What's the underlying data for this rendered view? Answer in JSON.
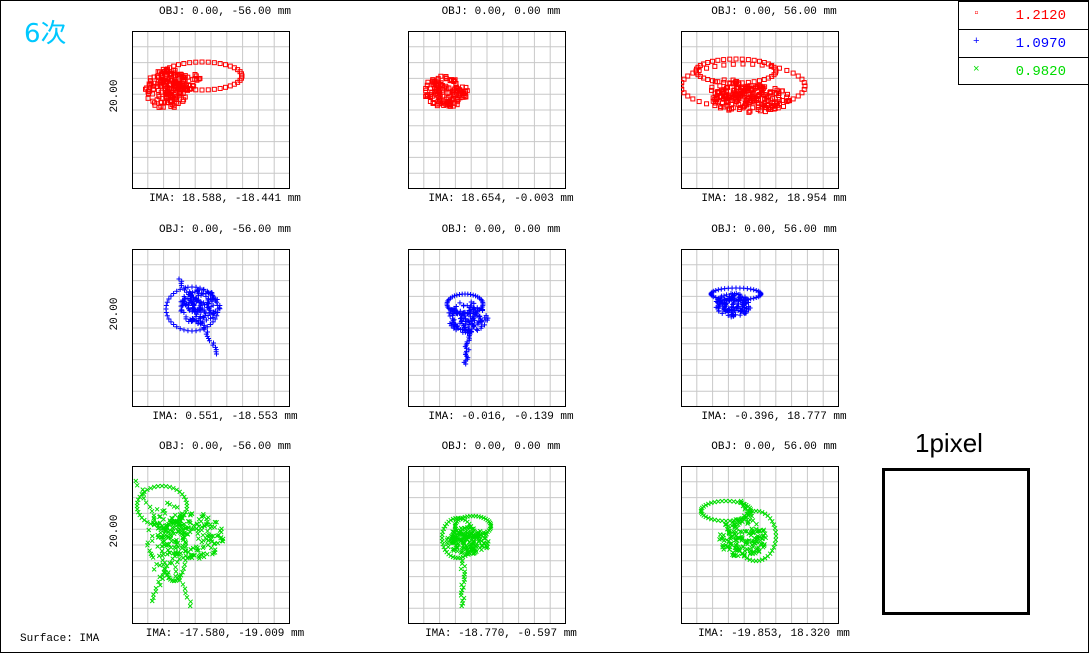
{
  "header": {
    "title": "6次"
  },
  "footer": {
    "surface_label": "Surface: IMA"
  },
  "legend": [
    {
      "value": "1.2120",
      "color": "#ff0000",
      "symbol": "square"
    },
    {
      "value": "1.0970",
      "color": "#0000ff",
      "symbol": "plus"
    },
    {
      "value": "0.9820",
      "color": "#00dd00",
      "symbol": "cross"
    }
  ],
  "pixel_ref": {
    "label": "1pixel"
  },
  "plots": [
    {
      "row": 0,
      "col": 0,
      "obj": "OBJ: 0.00, -56.00 mm",
      "ima": "IMA: 18.588, -18.441 mm",
      "scale": "20.00",
      "wavelength_index": 0
    },
    {
      "row": 0,
      "col": 1,
      "obj": "OBJ: 0.00, 0.00 mm",
      "ima": "IMA: 18.654, -0.003 mm",
      "scale": "",
      "wavelength_index": 0
    },
    {
      "row": 0,
      "col": 2,
      "obj": "OBJ: 0.00, 56.00 mm",
      "ima": "IMA: 18.982, 18.954 mm",
      "scale": "",
      "wavelength_index": 0
    },
    {
      "row": 1,
      "col": 0,
      "obj": "OBJ: 0.00, -56.00 mm",
      "ima": "IMA: 0.551, -18.553 mm",
      "scale": "20.00",
      "wavelength_index": 1
    },
    {
      "row": 1,
      "col": 1,
      "obj": "OBJ: 0.00, 0.00 mm",
      "ima": "IMA: -0.016, -0.139 mm",
      "scale": "",
      "wavelength_index": 1
    },
    {
      "row": 1,
      "col": 2,
      "obj": "OBJ: 0.00, 56.00 mm",
      "ima": "IMA: -0.396, 18.777 mm",
      "scale": "",
      "wavelength_index": 1
    },
    {
      "row": 2,
      "col": 0,
      "obj": "OBJ: 0.00, -56.00 mm",
      "ima": "IMA: -17.580, -19.009 mm",
      "scale": "20.00",
      "wavelength_index": 2
    },
    {
      "row": 2,
      "col": 1,
      "obj": "OBJ: 0.00, 0.00 mm",
      "ima": "IMA: -18.770, -0.597 mm",
      "scale": "",
      "wavelength_index": 2
    },
    {
      "row": 2,
      "col": 2,
      "obj": "OBJ: 0.00, 56.00 mm",
      "ima": "IMA: -19.853, 18.320 mm",
      "scale": "",
      "wavelength_index": 2
    }
  ]
}
